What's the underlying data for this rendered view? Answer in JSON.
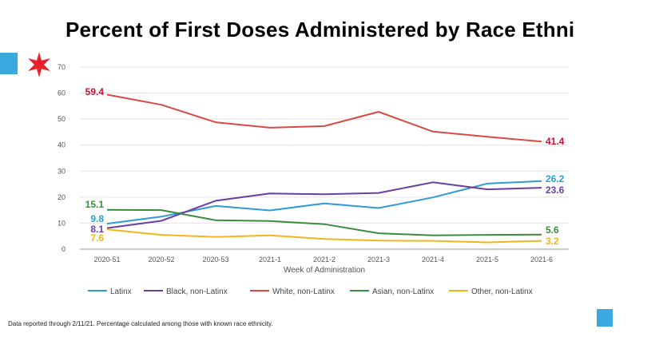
{
  "chart_data": {
    "type": "line",
    "title": "Percent of First Doses Administered by Race Ethni",
    "xlabel": "Week of Administration",
    "ylabel": "",
    "ylim": [
      0,
      70
    ],
    "yticks": [
      "0",
      "10",
      "20",
      "30",
      "40",
      "50",
      "60",
      "70"
    ],
    "categories": [
      "2020-51",
      "2020-52",
      "2020-53",
      "2021-1",
      "2021-2",
      "2021-3",
      "2021-4",
      "2021-5",
      "2021-6"
    ],
    "grid": true,
    "legend_position": "bottom",
    "series": [
      {
        "name": "Latinx",
        "color": "#2e9bd6",
        "values": [
          9.8,
          12.5,
          16.6,
          14.9,
          17.6,
          15.8,
          19.9,
          25.2,
          26.2
        ],
        "start_label": "9.8",
        "end_label": "26.2"
      },
      {
        "name": "Black, non-Latinx",
        "color": "#6a3fa0",
        "values": [
          8.1,
          10.9,
          18.6,
          21.4,
          21.1,
          21.6,
          25.7,
          23.0,
          23.6
        ],
        "start_label": "8.1",
        "end_label": "23.6"
      },
      {
        "name": "White, non-Latinx",
        "color": "#d94a44",
        "values": [
          59.4,
          55.5,
          48.8,
          46.7,
          47.3,
          52.8,
          45.2,
          43.2,
          41.4
        ],
        "start_label": "59.4",
        "end_label": "41.4"
      },
      {
        "name": "Asian, non-Latinx",
        "color": "#3a8c3f",
        "values": [
          15.1,
          15.0,
          11.1,
          10.8,
          9.6,
          6.1,
          5.3,
          5.5,
          5.6
        ],
        "start_label": "15.1",
        "end_label": "5.6"
      },
      {
        "name": "Other, non-Latinx",
        "color": "#f2b51c",
        "values": [
          7.6,
          5.5,
          4.7,
          5.3,
          3.9,
          3.3,
          3.2,
          2.6,
          3.2
        ],
        "start_label": "7.6",
        "end_label": "3.2"
      }
    ]
  },
  "label_colors": {
    "Latinx": "#2e9bd6",
    "Black, non-Latinx": "#6a3fa0",
    "White, non-Latinx": "#c8102e",
    "Asian, non-Latinx": "#3a8c3f",
    "Other, non-Latinx": "#f2b51c"
  },
  "footnote": "Data reported through 2/11/21. Percentage calculated among those with known race ethnicity.",
  "decor": {
    "star_icon_color": "#e8202a",
    "square_color": "#3ba9e0"
  }
}
